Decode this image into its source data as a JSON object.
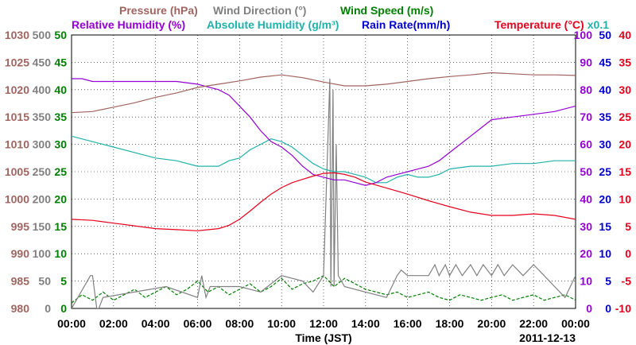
{
  "chart_data": {
    "type": "line",
    "xlabel": "Time (JST)",
    "date": "2011-12-13",
    "x_ticks": [
      "00:00",
      "02:00",
      "04:00",
      "06:00",
      "08:00",
      "10:00",
      "12:00",
      "14:00",
      "16:00",
      "18:00",
      "20:00",
      "22:00",
      "00:00"
    ],
    "x_hours": [
      0,
      24
    ],
    "legend": {
      "row1": [
        {
          "label": "Pressure (hPa)",
          "color": "#a0645f"
        },
        {
          "label": "Wind Direction (°)",
          "color": "#808080"
        },
        {
          "label": "Wind Speed (m/s)",
          "color": "#008000"
        }
      ],
      "row2": [
        {
          "label": "Relative Humidity (%)",
          "color": "#9400d3"
        },
        {
          "label": "Absolute Humidity (g/m³)",
          "color": "#20b2aa"
        },
        {
          "label": "Rain Rate(mm/h)",
          "color": "#0000cd"
        },
        {
          "label": "Temperature (°C)",
          "color": "#e8001c"
        }
      ],
      "multiplier": "x0.1"
    },
    "axes": {
      "pressure": {
        "color": "#a0645f",
        "ticks": [
          "1030",
          "1025",
          "1020",
          "1015",
          "1010",
          "1005",
          "1000",
          "995",
          "990",
          "985",
          "980"
        ],
        "range": [
          980,
          1030
        ]
      },
      "wind_direction": {
        "color": "#808080",
        "ticks": [
          "500",
          "450",
          "400",
          "350",
          "300",
          "250",
          "200",
          "150",
          "100",
          "50",
          "0"
        ],
        "range": [
          0,
          500
        ]
      },
      "wind_speed": {
        "color": "#008000",
        "ticks": [
          "50",
          "45",
          "40",
          "35",
          "30",
          "25",
          "20",
          "15",
          "10",
          "5",
          "0"
        ],
        "range": [
          0,
          50
        ]
      },
      "humidity": {
        "color": "#9400d3",
        "ticks": [
          "100",
          "90",
          "80",
          "70",
          "60",
          "50",
          "40",
          "30",
          "20",
          "10",
          "0"
        ],
        "range": [
          0,
          100
        ]
      },
      "rain_rate": {
        "color": "#0000cd",
        "ticks": [
          "50",
          "45",
          "40",
          "35",
          "30",
          "25",
          "20",
          "15",
          "10",
          "5",
          "0"
        ],
        "range": [
          0,
          50
        ]
      },
      "temperature": {
        "color": "#e8001c",
        "ticks": [
          "40",
          "35",
          "30",
          "25",
          "20",
          "15",
          "10",
          "5",
          "0",
          "-5",
          "-10"
        ],
        "range": [
          -10,
          40
        ]
      }
    },
    "series": [
      {
        "name": "Pressure (hPa)",
        "axis": "pressure",
        "color": "#a0645f",
        "x": [
          0,
          1,
          2,
          3,
          4,
          5,
          6,
          7,
          8,
          9,
          10,
          11,
          12,
          13,
          14,
          15,
          16,
          17,
          18,
          19,
          20,
          21,
          22,
          23,
          24
        ],
        "values": [
          1015.8,
          1016.0,
          1016.8,
          1017.6,
          1018.6,
          1019.4,
          1020.4,
          1021.0,
          1021.6,
          1022.3,
          1022.7,
          1022.2,
          1021.4,
          1020.7,
          1020.7,
          1021.0,
          1021.5,
          1022.0,
          1022.4,
          1022.7,
          1023.1,
          1022.9,
          1022.7,
          1022.7,
          1022.6
        ]
      },
      {
        "name": "Relative Humidity (%)",
        "axis": "humidity",
        "color": "#9400d3",
        "x": [
          0,
          0.5,
          1,
          2,
          3,
          4,
          5,
          6,
          7,
          7.5,
          8,
          8.5,
          9,
          9.5,
          10,
          10.5,
          11,
          11.5,
          12,
          12.5,
          13,
          13.5,
          14,
          14.5,
          15,
          15.5,
          16,
          16.5,
          17,
          17.5,
          18,
          18.5,
          19,
          19.5,
          20,
          21,
          22,
          23,
          24
        ],
        "values": [
          84,
          84,
          83,
          83,
          83,
          83,
          83,
          82,
          80,
          78,
          74,
          70,
          65,
          61,
          59,
          56,
          52,
          49,
          48,
          47,
          47,
          46,
          45,
          46,
          48,
          49,
          50,
          51,
          52,
          54,
          57,
          60,
          63,
          66,
          69,
          70,
          71,
          72,
          74
        ]
      },
      {
        "name": "Absolute Humidity (g/m³)",
        "axis": "humidity",
        "color": "#20b2aa",
        "x": [
          0,
          1,
          2,
          3,
          4,
          5,
          6,
          7,
          7.5,
          8,
          8.5,
          9,
          9.5,
          10,
          10.5,
          11,
          11.5,
          12,
          12.5,
          13,
          13.5,
          14,
          14.5,
          15,
          15.5,
          16,
          16.5,
          17,
          17.5,
          18,
          19,
          20,
          21,
          22,
          23,
          24
        ],
        "values": [
          63,
          61,
          59,
          57,
          55,
          54,
          52,
          52,
          54,
          55,
          58,
          60,
          62,
          61,
          59,
          56,
          53,
          51,
          50,
          50,
          49,
          48,
          46,
          46,
          48,
          49,
          48,
          48,
          49,
          51,
          52,
          52,
          53,
          53,
          54,
          54
        ]
      },
      {
        "name": "Temperature (°C)",
        "axis": "temperature",
        "color": "#e8001c",
        "x": [
          0,
          1,
          2,
          3,
          4,
          5,
          6,
          7,
          7.5,
          8,
          8.5,
          9,
          9.5,
          10,
          10.5,
          11,
          11.5,
          12,
          12.5,
          13,
          13.5,
          14,
          15,
          16,
          17,
          18,
          19,
          20,
          21,
          22,
          23,
          24
        ],
        "values": [
          6.3,
          6.1,
          5.6,
          5.1,
          4.6,
          4.4,
          4.2,
          4.6,
          5.2,
          6.3,
          7.8,
          9.4,
          10.9,
          12.1,
          13.0,
          13.6,
          14.2,
          14.7,
          14.8,
          14.5,
          14.0,
          13.1,
          12.0,
          10.9,
          9.7,
          8.6,
          7.6,
          7.0,
          7.0,
          7.3,
          7.0,
          6.3
        ]
      },
      {
        "name": "Wind Direction (°)",
        "axis": "wind_direction",
        "color": "#808080",
        "x": [
          0,
          0.9,
          1.0,
          1.2,
          1.3,
          1.5,
          4.5,
          6.0,
          6.2,
          6.4,
          6.6,
          8.0,
          9.0,
          10.0,
          11.0,
          11.5,
          12.0,
          12.3,
          12.35,
          12.45,
          12.5,
          12.6,
          12.7,
          13.0,
          14.0,
          15.0,
          15.5,
          15.7,
          16.0,
          17.0,
          17.3,
          17.5,
          17.8,
          18.0,
          18.3,
          18.6,
          19.0,
          19.3,
          19.6,
          20.0,
          20.3,
          20.6,
          21.0,
          21.5,
          22.0,
          22.5,
          23.0,
          23.5,
          24.0
        ],
        "values": [
          0,
          60,
          60,
          0,
          0,
          20,
          40,
          20,
          60,
          20,
          40,
          40,
          30,
          60,
          50,
          30,
          60,
          420,
          40,
          400,
          40,
          300,
          60,
          40,
          30,
          20,
          60,
          70,
          60,
          60,
          80,
          60,
          80,
          60,
          80,
          60,
          80,
          60,
          80,
          60,
          80,
          60,
          80,
          60,
          80,
          60,
          40,
          20,
          60
        ]
      },
      {
        "name": "Wind Speed (m/s)",
        "axis": "wind_speed",
        "color": "#008000",
        "x": [
          0,
          0.5,
          1,
          1.5,
          2,
          2.5,
          3,
          3.5,
          4,
          4.5,
          5,
          5.5,
          6,
          6.5,
          7,
          7.5,
          8,
          8.5,
          9,
          9.5,
          10,
          10.5,
          11,
          11.5,
          12,
          12.5,
          13,
          13.5,
          14,
          14.5,
          15,
          15.5,
          16,
          16.5,
          17,
          17.5,
          18,
          18.5,
          19,
          19.5,
          20,
          20.5,
          21,
          21.5,
          22,
          22.5,
          23,
          23.5,
          24
        ],
        "values": [
          1.0,
          2.5,
          1.5,
          3.0,
          1.5,
          2.5,
          3.5,
          2.0,
          3.0,
          4.0,
          2.5,
          3.5,
          5.0,
          3.0,
          4.0,
          2.5,
          3.5,
          4.5,
          3.0,
          4.0,
          5.5,
          3.5,
          4.5,
          5.0,
          6.0,
          4.0,
          5.5,
          4.5,
          3.5,
          3.0,
          2.5,
          3.0,
          2.0,
          2.5,
          3.0,
          2.0,
          1.5,
          2.5,
          2.0,
          1.5,
          2.0,
          2.5,
          1.5,
          2.0,
          2.5,
          1.5,
          2.0,
          2.5,
          1.5
        ]
      }
    ]
  }
}
